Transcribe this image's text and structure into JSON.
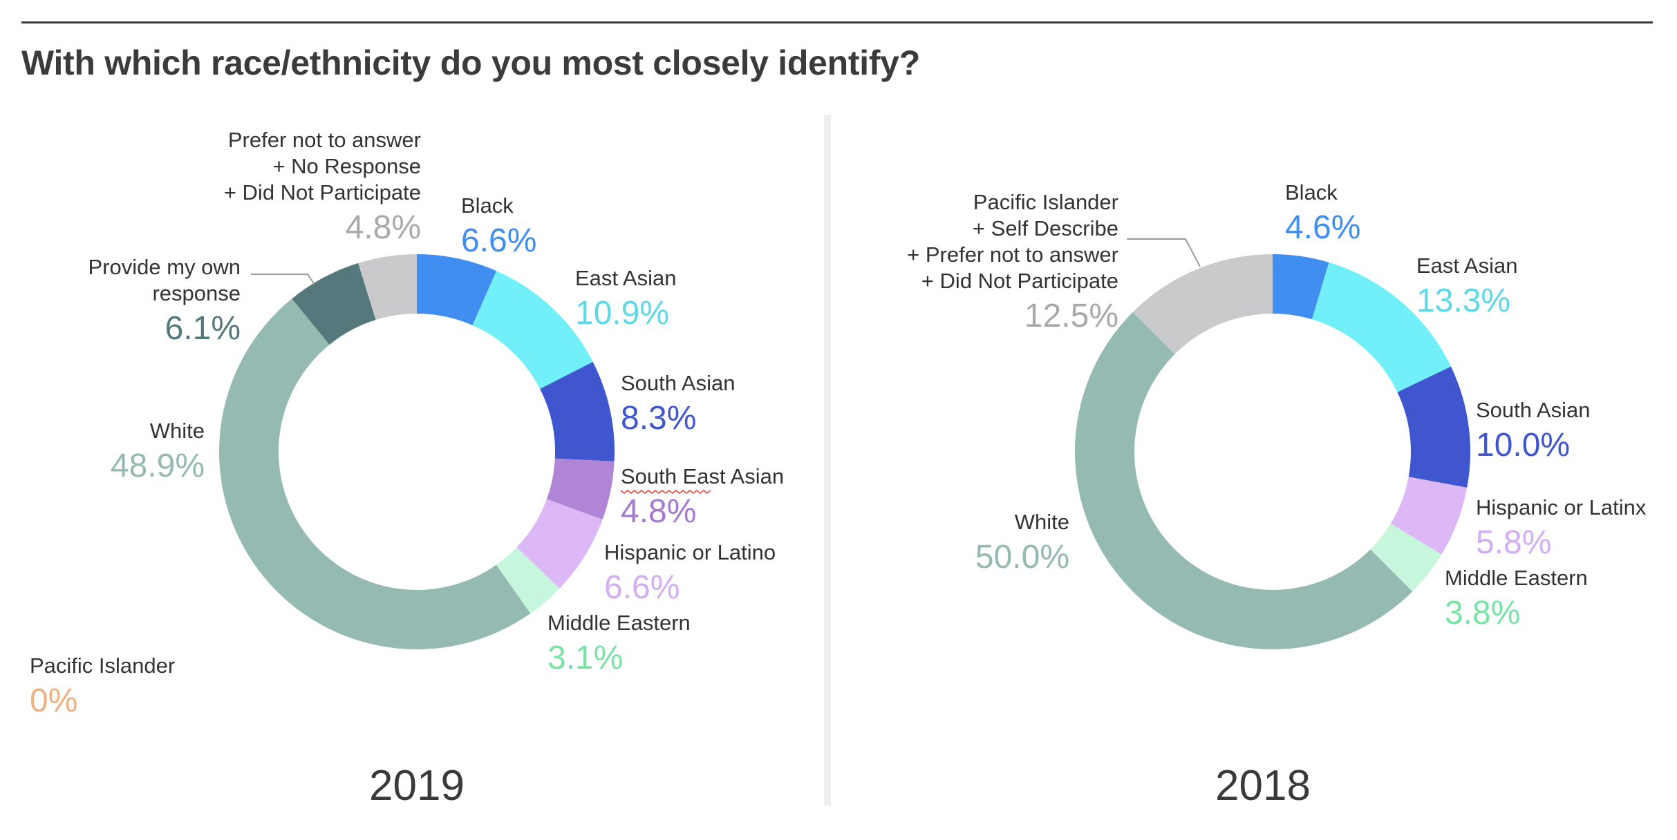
{
  "page": {
    "title": "With which race/ethnicity do you most closely identify?"
  },
  "chart_data": [
    {
      "type": "pie",
      "title": "2019",
      "donut": true,
      "categories": [
        "Black",
        "East Asian",
        "South Asian",
        "South East Asian",
        "Hispanic or Latino",
        "Middle Eastern",
        "White",
        "Pacific Islander",
        "Provide my own response",
        "Prefer not to answer + No Response + Did Not Participate"
      ],
      "values": [
        6.6,
        10.9,
        8.3,
        4.8,
        6.6,
        3.1,
        48.9,
        0,
        6.1,
        4.8
      ],
      "labels": [
        {
          "lines": [
            "Black"
          ],
          "value": "6.6%"
        },
        {
          "lines": [
            "East Asian"
          ],
          "value": "10.9%"
        },
        {
          "lines": [
            "South Asian"
          ],
          "value": "8.3%"
        },
        {
          "lines": [
            "South East Asian"
          ],
          "value": "4.8%"
        },
        {
          "lines": [
            "Hispanic or Latino"
          ],
          "value": "6.6%"
        },
        {
          "lines": [
            "Middle Eastern"
          ],
          "value": "3.1%"
        },
        {
          "lines": [
            "White"
          ],
          "value": "48.9%"
        },
        {
          "lines": [
            "Pacific Islander"
          ],
          "value": "0%"
        },
        {
          "lines": [
            "Provide my own",
            "response"
          ],
          "value": "6.1%"
        },
        {
          "lines": [
            "Prefer not to answer",
            "+ No Response",
            "+ Did Not Participate"
          ],
          "value": "4.8%"
        }
      ],
      "colors": [
        "#3f8ef0",
        "#72f0fa",
        "#3f56cf",
        "#b185d6",
        "#dcb8f7",
        "#c6f7dc",
        "#95bab1",
        "#f0b07f",
        "#55787d",
        "#cacacc"
      ],
      "value_colors": [
        "#3f8ef0",
        "#5fd8e6",
        "#3f56cf",
        "#a77ad1",
        "#d3aef4",
        "#79e3a6",
        "#95bab1",
        "#f0b07f",
        "#55787d",
        "#a9a9ab"
      ]
    },
    {
      "type": "pie",
      "title": "2018",
      "donut": true,
      "categories": [
        "Black",
        "East Asian",
        "South Asian",
        "Hispanic or Latinx",
        "Middle Eastern",
        "White",
        "Pacific Islander + Self Describe + Prefer not to answer + Did Not Participate"
      ],
      "values": [
        4.6,
        13.3,
        10.0,
        5.8,
        3.8,
        50.0,
        12.5
      ],
      "labels": [
        {
          "lines": [
            "Black"
          ],
          "value": "4.6%"
        },
        {
          "lines": [
            "East Asian"
          ],
          "value": "13.3%"
        },
        {
          "lines": [
            "South Asian"
          ],
          "value": "10.0%"
        },
        {
          "lines": [
            "Hispanic or Latinx"
          ],
          "value": "5.8%"
        },
        {
          "lines": [
            "Middle Eastern"
          ],
          "value": "3.8%"
        },
        {
          "lines": [
            "White"
          ],
          "value": "50.0%"
        },
        {
          "lines": [
            "Pacific Islander",
            "+ Self Describe",
            "+ Prefer not to answer",
            "+ Did Not Participate"
          ],
          "value": "12.5%"
        }
      ],
      "colors": [
        "#3f8ef0",
        "#72f0fa",
        "#3f56cf",
        "#dcb8f7",
        "#c6f7dc",
        "#95bab1",
        "#cacacc"
      ],
      "value_colors": [
        "#3f8ef0",
        "#5fd8e6",
        "#3f56cf",
        "#d3aef4",
        "#79e3a6",
        "#95bab1",
        "#a9a9ab"
      ]
    }
  ]
}
